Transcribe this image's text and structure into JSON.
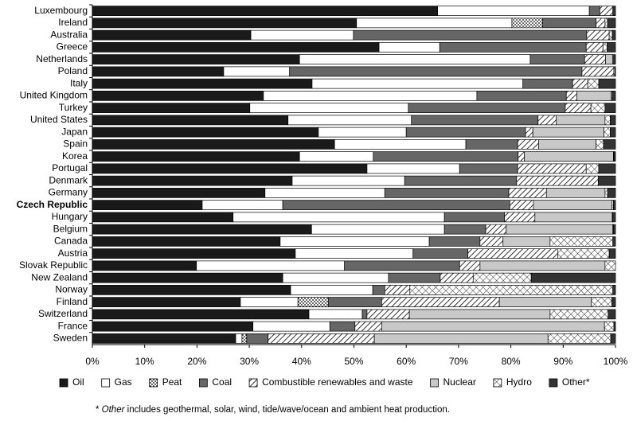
{
  "chart_data": {
    "type": "stacked-bar-horizontal",
    "categories": [
      "Luxembourg",
      "Ireland",
      "Australia",
      "Greece",
      "Netherlands",
      "Poland",
      "Italy",
      "United Kingdom",
      "Turkey",
      "United States",
      "Japan",
      "Spain",
      "Korea",
      "Portugal",
      "Denmark",
      "Germany",
      "Czech Republic",
      "Hungary",
      "Belgium",
      "Canada",
      "Austria",
      "Slovak Republic",
      "New Zealand",
      "Norway",
      "Finland",
      "Switzerland",
      "France",
      "Sweden"
    ],
    "bold_category_index": 16,
    "series": [
      {
        "name": "Oil",
        "color": "#1a1a1a",
        "pattern": "solid",
        "values": [
          66,
          50.5,
          30.3,
          54.8,
          39.6,
          25.1,
          42,
          32.7,
          30.1,
          37.4,
          43.2,
          46.3,
          39.6,
          52.5,
          38.2,
          33,
          21,
          26.9,
          41.9,
          35.9,
          38.8,
          19.9,
          36.4,
          37.9,
          28.3,
          41.4,
          30.7,
          27.4
        ]
      },
      {
        "name": "Gas",
        "color": "#ffffff",
        "pattern": "solid",
        "values": [
          29,
          29.7,
          19.6,
          11.6,
          44.1,
          12.6,
          40.3,
          40.8,
          30.3,
          23.6,
          16.8,
          25.1,
          14.1,
          17.7,
          21.5,
          22.9,
          15.4,
          40.4,
          25.4,
          28.5,
          22.5,
          28.3,
          20.2,
          15.7,
          11,
          10.2,
          14.7,
          1.2
        ]
      },
      {
        "name": "Peat",
        "color": "#ffffff",
        "pattern": "dots",
        "values": [
          0,
          5.9,
          0,
          0,
          0,
          0,
          0,
          0,
          0,
          0,
          0,
          0,
          0,
          0,
          0,
          0,
          0,
          0,
          0,
          0,
          0,
          0,
          0,
          0,
          5.8,
          0,
          0,
          0.9
        ]
      },
      {
        "name": "Coal",
        "color": "#666666",
        "pattern": "solid",
        "values": [
          2,
          10.2,
          44.6,
          28,
          10.4,
          55.9,
          9.5,
          17.1,
          30,
          24.2,
          22.8,
          9.9,
          27.7,
          11.1,
          21.4,
          23.7,
          43.4,
          11.5,
          7.9,
          9.7,
          10.5,
          22,
          9.9,
          2.3,
          10.2,
          0.9,
          4.8,
          4.1
        ]
      },
      {
        "name": "Combustible renewables and waste",
        "color": "#ffffff",
        "pattern": "diagonal",
        "values": [
          2.5,
          1.7,
          4.3,
          3.2,
          4,
          6.1,
          2.9,
          2,
          4.9,
          3.5,
          1.4,
          4,
          1.2,
          13.1,
          15.6,
          7.2,
          4.5,
          5.8,
          3.9,
          4.4,
          17.2,
          3.9,
          6.3,
          4.8,
          22.5,
          8.1,
          5.1,
          20.3
        ]
      },
      {
        "name": "Nuclear",
        "color": "#c8c8c8",
        "pattern": "solid",
        "values": [
          0,
          0,
          0,
          0,
          1.4,
          0,
          0,
          6.6,
          0,
          9.3,
          13.6,
          11,
          17,
          0,
          0,
          11.2,
          15,
          14.8,
          20.4,
          9,
          0,
          23.9,
          0,
          0,
          17.6,
          26.9,
          42.6,
          33.2
        ]
      },
      {
        "name": "Hydro",
        "color": "#ffffff",
        "pattern": "cross",
        "values": [
          0,
          0.5,
          0.6,
          0.8,
          0,
          0.2,
          2.1,
          0.2,
          2.7,
          1,
          1.2,
          1.4,
          0.1,
          2.4,
          0,
          0.5,
          0.3,
          0.1,
          0.1,
          12,
          9.8,
          2,
          11.1,
          38.8,
          3.9,
          11.1,
          1.8,
          12
        ]
      },
      {
        "name": "Other*",
        "color": "#333333",
        "pattern": "solid",
        "values": [
          0.5,
          1.5,
          0.6,
          1.6,
          0.5,
          0.1,
          3.2,
          0.6,
          2,
          1,
          1,
          2.3,
          0.3,
          3.2,
          3.3,
          1.5,
          0.4,
          0.5,
          0.4,
          0.5,
          1.2,
          0,
          16.1,
          0.5,
          0.7,
          1.4,
          0.3,
          0.9
        ]
      }
    ],
    "xlim": [
      0,
      100
    ],
    "xticks": [
      {
        "value": 0,
        "label": "0%"
      },
      {
        "value": 10,
        "label": "10%"
      },
      {
        "value": 20,
        "label": "20%"
      },
      {
        "value": 30,
        "label": "30%"
      },
      {
        "value": 40,
        "label": "40%"
      },
      {
        "value": 50,
        "label": "50%"
      },
      {
        "value": 60,
        "label": "60%"
      },
      {
        "value": 70,
        "label": "70%"
      },
      {
        "value": 80,
        "label": "80%"
      },
      {
        "value": 90,
        "label": "90%"
      },
      {
        "value": 100,
        "label": "100%"
      }
    ],
    "legend": "bottom",
    "footnote": {
      "marker": "* ",
      "term": "Other",
      "text": " includes geothermal, solar, wind, tide/wave/ocean and ambient heat production."
    }
  }
}
